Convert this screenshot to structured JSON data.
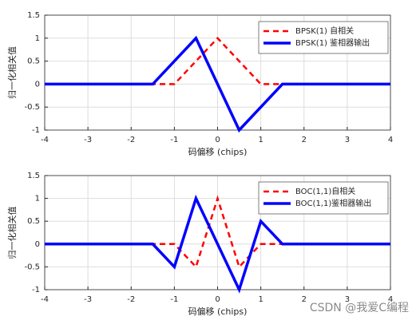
{
  "chart_data": [
    {
      "type": "line",
      "xlabel": "码偏移 (chips)",
      "ylabel": "归一化相关值",
      "xlim": [
        -4,
        4
      ],
      "ylim": [
        -1,
        1.5
      ],
      "xticks": [
        -4,
        -3,
        -2,
        -1,
        0,
        1,
        2,
        3,
        4
      ],
      "yticks": [
        -1,
        -0.5,
        0,
        0.5,
        1,
        1.5
      ],
      "grid": true,
      "legend": "upper right",
      "series": [
        {
          "name": "BPSK(1) 自相关",
          "color": "#ff0000",
          "linestyle": "dashed",
          "x": [
            -4,
            -1,
            0,
            1,
            4
          ],
          "values": [
            0,
            0,
            1,
            0,
            0
          ]
        },
        {
          "name": "BPSK(1) 鉴相器输出",
          "color": "#0000ff",
          "linestyle": "solid",
          "x": [
            -4,
            -1.5,
            -0.5,
            0.5,
            1.5,
            4
          ],
          "values": [
            0,
            0,
            1,
            -1,
            0,
            0
          ]
        }
      ]
    },
    {
      "type": "line",
      "xlabel": "码偏移 (chips)",
      "ylabel": "归一化相关值",
      "xlim": [
        -4,
        4
      ],
      "ylim": [
        -1,
        1.5
      ],
      "xticks": [
        -4,
        -3,
        -2,
        -1,
        0,
        1,
        2,
        3,
        4
      ],
      "yticks": [
        -1,
        -0.5,
        0,
        0.5,
        1,
        1.5
      ],
      "grid": true,
      "legend": "upper right",
      "series": [
        {
          "name": "BOC(1,1)自相关",
          "color": "#ff0000",
          "linestyle": "dashed",
          "x": [
            -4,
            -1,
            -0.5,
            0,
            0.5,
            1,
            4
          ],
          "values": [
            0,
            0,
            -0.5,
            1,
            -0.5,
            0,
            0
          ]
        },
        {
          "name": "BOC(1,1)鉴相器输出",
          "color": "#0000ff",
          "linestyle": "solid",
          "x": [
            -4,
            -1.5,
            -1,
            -0.5,
            0.5,
            1,
            1.5,
            4
          ],
          "values": [
            0,
            0,
            -0.5,
            1,
            -1,
            0.5,
            0,
            0
          ]
        }
      ]
    }
  ],
  "watermark": "CSDN @我爱C编程"
}
